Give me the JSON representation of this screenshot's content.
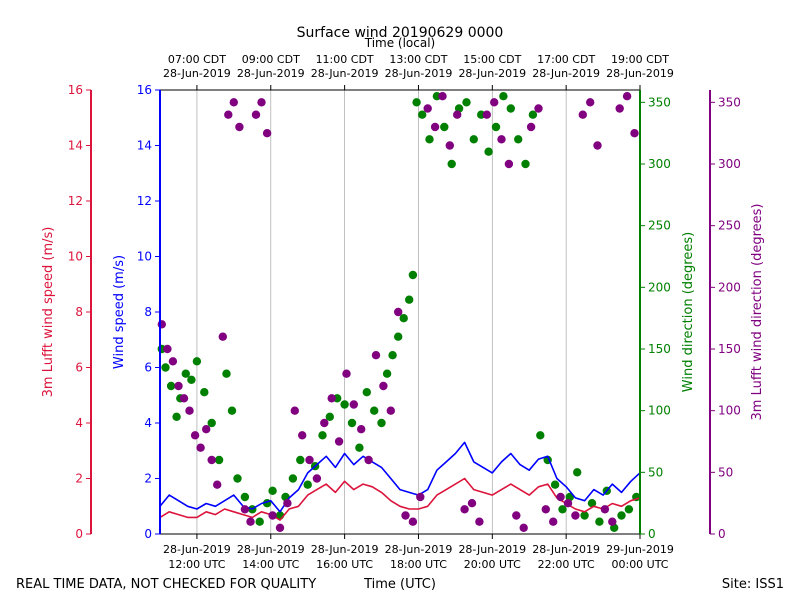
{
  "chart_data": {
    "type": "scatter",
    "title": "Surface wind 20190629 0000",
    "top_xlabel": "Time (local)",
    "xlabel": "Time (UTC)",
    "footer_left": "REAL TIME DATA, NOT CHECKED FOR QUALITY",
    "footer_right": "Site: ISS1",
    "x_range_hours_utc": [
      11.0,
      24.0
    ],
    "bottom_ticks": [
      {
        "h": 12,
        "line1": "28-Jun-2019",
        "line2": "12:00 UTC"
      },
      {
        "h": 14,
        "line1": "28-Jun-2019",
        "line2": "14:00 UTC"
      },
      {
        "h": 16,
        "line1": "28-Jun-2019",
        "line2": "16:00 UTC"
      },
      {
        "h": 18,
        "line1": "28-Jun-2019",
        "line2": "18:00 UTC"
      },
      {
        "h": 20,
        "line1": "28-Jun-2019",
        "line2": "20:00 UTC"
      },
      {
        "h": 22,
        "line1": "28-Jun-2019",
        "line2": "22:00 UTC"
      },
      {
        "h": 24,
        "line1": "29-Jun-2019",
        "line2": "00:00 UTC"
      }
    ],
    "top_ticks": [
      {
        "h": 12,
        "line1": "07:00 CDT",
        "line2": "28-Jun-2019"
      },
      {
        "h": 14,
        "line1": "09:00 CDT",
        "line2": "28-Jun-2019"
      },
      {
        "h": 16,
        "line1": "11:00 CDT",
        "line2": "28-Jun-2019"
      },
      {
        "h": 18,
        "line1": "13:00 CDT",
        "line2": "28-Jun-2019"
      },
      {
        "h": 20,
        "line1": "15:00 CDT",
        "line2": "28-Jun-2019"
      },
      {
        "h": 22,
        "line1": "17:00 CDT",
        "line2": "28-Jun-2019"
      },
      {
        "h": 24,
        "line1": "19:00 CDT",
        "line2": "28-Jun-2019"
      }
    ],
    "grid_vertical": true,
    "axes": {
      "lufft_speed": {
        "label": "3m Lufft wind speed (m/s)",
        "color": "#dc143c",
        "range": [
          0,
          16
        ],
        "ticks": [
          0,
          2,
          4,
          6,
          8,
          10,
          12,
          14,
          16
        ]
      },
      "speed": {
        "label": "Wind speed (m/s)",
        "color": "#0000ff",
        "range": [
          0,
          16
        ],
        "ticks": [
          0,
          2,
          4,
          6,
          8,
          10,
          12,
          14,
          16
        ]
      },
      "direction": {
        "label": "Wind direction (degrees)",
        "color": "#008000",
        "range": [
          0,
          360
        ],
        "ticks": [
          0,
          50,
          100,
          150,
          200,
          250,
          300,
          350
        ]
      },
      "lufft_direction": {
        "label": "3m Lufft wind direction (degrees)",
        "color": "#800080",
        "range": [
          0,
          360
        ],
        "ticks": [
          0,
          50,
          100,
          150,
          200,
          250,
          300,
          350
        ]
      }
    },
    "series": [
      {
        "name": "Wind speed",
        "kind": "line",
        "axis": "speed",
        "color": "#0000ff",
        "x": [
          11.0,
          11.25,
          11.5,
          11.75,
          12.0,
          12.25,
          12.5,
          12.75,
          13.0,
          13.25,
          13.5,
          13.75,
          14.0,
          14.25,
          14.5,
          14.75,
          15.0,
          15.25,
          15.5,
          15.75,
          16.0,
          16.25,
          16.5,
          16.75,
          17.0,
          17.25,
          17.5,
          17.75,
          18.0,
          18.25,
          18.5,
          18.75,
          19.0,
          19.25,
          19.5,
          19.75,
          20.0,
          20.25,
          20.5,
          20.75,
          21.0,
          21.25,
          21.5,
          21.75,
          22.0,
          22.25,
          22.5,
          22.75,
          23.0,
          23.25,
          23.5,
          23.75,
          24.0
        ],
        "y": [
          1.0,
          1.4,
          1.2,
          1.0,
          0.9,
          1.1,
          1.0,
          1.2,
          1.4,
          1.0,
          0.9,
          1.1,
          1.2,
          0.8,
          1.3,
          1.6,
          2.2,
          2.5,
          2.8,
          2.4,
          2.9,
          2.5,
          2.8,
          2.6,
          2.4,
          2.0,
          1.6,
          1.5,
          1.4,
          1.6,
          2.3,
          2.6,
          2.9,
          3.3,
          2.6,
          2.4,
          2.2,
          2.6,
          2.9,
          2.5,
          2.3,
          2.7,
          2.8,
          2.0,
          1.7,
          1.3,
          1.2,
          1.6,
          1.4,
          1.8,
          1.5,
          1.9,
          2.2
        ]
      },
      {
        "name": "3m Lufft wind speed",
        "kind": "line",
        "axis": "lufft_speed",
        "color": "#dc143c",
        "x": [
          11.0,
          11.25,
          11.5,
          11.75,
          12.0,
          12.25,
          12.5,
          12.75,
          13.0,
          13.25,
          13.5,
          13.75,
          14.0,
          14.25,
          14.5,
          14.75,
          15.0,
          15.25,
          15.5,
          15.75,
          16.0,
          16.25,
          16.5,
          16.75,
          17.0,
          17.25,
          17.5,
          17.75,
          18.0,
          18.25,
          18.5,
          18.75,
          19.0,
          19.25,
          19.5,
          19.75,
          20.0,
          20.25,
          20.5,
          20.75,
          21.0,
          21.25,
          21.5,
          21.75,
          22.0,
          22.25,
          22.5,
          22.75,
          23.0,
          23.25,
          23.5,
          23.75,
          24.0
        ],
        "y": [
          0.6,
          0.8,
          0.7,
          0.6,
          0.6,
          0.8,
          0.7,
          0.9,
          0.8,
          0.7,
          0.6,
          0.8,
          0.7,
          0.5,
          0.9,
          1.0,
          1.4,
          1.6,
          1.8,
          1.5,
          1.9,
          1.6,
          1.8,
          1.7,
          1.5,
          1.2,
          1.0,
          0.9,
          0.9,
          1.0,
          1.4,
          1.6,
          1.8,
          2.0,
          1.6,
          1.5,
          1.4,
          1.6,
          1.8,
          1.6,
          1.4,
          1.7,
          1.8,
          1.3,
          1.1,
          0.9,
          0.8,
          1.0,
          0.9,
          1.1,
          1.0,
          1.2,
          1.3
        ]
      },
      {
        "name": "Wind direction",
        "kind": "points",
        "axis": "direction",
        "color": "#008000",
        "x": [
          11.05,
          11.15,
          11.3,
          11.45,
          11.55,
          11.7,
          11.85,
          12.0,
          12.2,
          12.4,
          12.6,
          12.8,
          12.95,
          13.1,
          13.3,
          13.5,
          13.7,
          13.9,
          14.05,
          14.25,
          14.4,
          14.6,
          14.8,
          15.0,
          15.2,
          15.4,
          15.6,
          15.8,
          16.0,
          16.2,
          16.4,
          16.6,
          16.8,
          17.0,
          17.15,
          17.3,
          17.45,
          17.6,
          17.75,
          17.85,
          17.95,
          18.1,
          18.3,
          18.5,
          18.7,
          18.9,
          19.1,
          19.3,
          19.5,
          19.7,
          19.9,
          20.1,
          20.3,
          20.5,
          20.7,
          20.9,
          21.1,
          21.3,
          21.5,
          21.7,
          21.9,
          22.1,
          22.3,
          22.5,
          22.7,
          22.9,
          23.1,
          23.3,
          23.5,
          23.7,
          23.9
        ],
        "y": [
          150,
          135,
          120,
          95,
          110,
          130,
          125,
          140,
          115,
          90,
          60,
          130,
          100,
          45,
          30,
          20,
          10,
          25,
          35,
          15,
          30,
          45,
          60,
          40,
          55,
          80,
          95,
          110,
          105,
          90,
          70,
          115,
          100,
          90,
          130,
          145,
          160,
          175,
          190,
          210,
          350,
          340,
          320,
          355,
          330,
          300,
          345,
          350,
          320,
          340,
          310,
          330,
          355,
          345,
          320,
          300,
          340,
          80,
          60,
          40,
          20,
          30,
          50,
          15,
          25,
          10,
          35,
          5,
          15,
          20,
          30
        ]
      },
      {
        "name": "3m Lufft wind direction",
        "kind": "points",
        "axis": "lufft_direction",
        "color": "#800080",
        "x": [
          11.05,
          11.2,
          11.35,
          11.5,
          11.65,
          11.8,
          11.95,
          12.1,
          12.25,
          12.4,
          12.55,
          12.7,
          12.85,
          13.0,
          13.15,
          13.3,
          13.45,
          13.6,
          13.75,
          13.9,
          14.05,
          14.25,
          14.45,
          14.65,
          14.85,
          15.05,
          15.25,
          15.45,
          15.65,
          15.85,
          16.05,
          16.25,
          16.45,
          16.65,
          16.85,
          17.05,
          17.25,
          17.45,
          17.65,
          17.85,
          18.05,
          18.25,
          18.45,
          18.65,
          18.85,
          19.05,
          19.25,
          19.45,
          19.65,
          19.85,
          20.05,
          20.25,
          20.45,
          20.65,
          20.85,
          21.05,
          21.25,
          21.45,
          21.65,
          21.85,
          22.05,
          22.25,
          22.45,
          22.65,
          22.85,
          23.05,
          23.25,
          23.45,
          23.65,
          23.85
        ],
        "y": [
          170,
          150,
          140,
          120,
          110,
          100,
          80,
          70,
          85,
          60,
          40,
          160,
          340,
          350,
          330,
          20,
          10,
          340,
          350,
          325,
          15,
          5,
          25,
          100,
          80,
          60,
          45,
          90,
          110,
          75,
          130,
          105,
          85,
          60,
          145,
          120,
          100,
          180,
          15,
          10,
          30,
          345,
          330,
          355,
          315,
          340,
          20,
          25,
          10,
          340,
          350,
          320,
          300,
          15,
          5,
          330,
          345,
          20,
          10,
          30,
          25,
          15,
          340,
          350,
          315,
          20,
          10,
          345,
          355,
          325
        ]
      }
    ]
  }
}
